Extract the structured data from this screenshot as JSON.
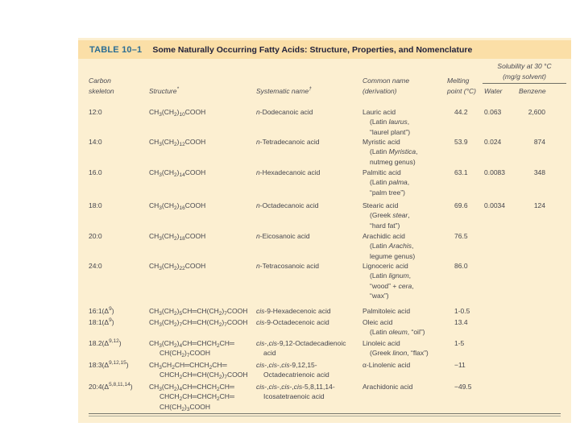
{
  "table": {
    "label": "TABLE 10–1",
    "title": "Some Naturally Occurring Fatty Acids: Structure, Properties, and Nomenclature",
    "colors": {
      "band_background": "#fbdfa7",
      "body_background": "#fcefd1",
      "label_blue": "#2d6e93",
      "text": "#45454d"
    },
    "headers": {
      "carbon_line1": "Carbon",
      "carbon_line2": "skeleton",
      "structure": "Structure^{*}",
      "systematic": "Systematic name^{†}",
      "common_line1": "Common name",
      "common_line2": "(derivation)",
      "melting_line1": "Melting",
      "melting_line2": "point (°C)",
      "solubility_line1": "Solubility at 30 °C",
      "solubility_line2": "(mg/g solvent)",
      "water": "Water",
      "benzene": "Benzene"
    },
    "rows": [
      {
        "skeleton": "12:0",
        "structure": [
          "CH_{3}(CH_{2})_{10}COOH"
        ],
        "systematic": [
          "*n*-Dodecanoic acid"
        ],
        "common": [
          "Lauric acid",
          "(Latin *laurus*,",
          "“laurel plant”)"
        ],
        "melting": "44.2",
        "water": "0.063",
        "benzene": "2,600"
      },
      {
        "skeleton": "14:0",
        "structure": [
          "CH_{3}(CH_{2})_{12}COOH"
        ],
        "systematic": [
          "*n*-Tetradecanoic acid"
        ],
        "common": [
          "Myristic acid",
          "(Latin *Myristica*,",
          "nutmeg genus)"
        ],
        "melting": "53.9",
        "water": "0.024",
        "benzene": "874"
      },
      {
        "skeleton": "16.0",
        "structure": [
          "CH_{3}(CH_{2})_{14}COOH"
        ],
        "systematic": [
          "*n*-Hexadecanoic acid"
        ],
        "common": [
          "Palmitic acid",
          "(Latin *palma*,",
          "“palm tree”)"
        ],
        "melting": "63.1",
        "water": "0.0083",
        "benzene": "348"
      },
      {
        "skeleton": "18:0",
        "structure": [
          "CH_{3}(CH_{2})_{16}COOH"
        ],
        "systematic": [
          "*n*-Octadecanoic acid"
        ],
        "common": [
          "Stearic acid",
          "(Greek *stear*,",
          "“hard fat”)"
        ],
        "melting": "69.6",
        "water": "0.0034",
        "benzene": "124"
      },
      {
        "skeleton": "20:0",
        "structure": [
          "CH_{3}(CH_{2})_{18}COOH"
        ],
        "systematic": [
          "*n*-Eicosanoic acid"
        ],
        "common": [
          "Arachidic acid",
          "(Latin *Arachis*,",
          "legume genus)"
        ],
        "melting": "76.5",
        "water": "",
        "benzene": ""
      },
      {
        "skeleton": "24:0",
        "structure": [
          "CH_{3}(CH_{2})_{22}COOH"
        ],
        "systematic": [
          "*n*-Tetracosanoic acid"
        ],
        "common": [
          "Lignoceric acid",
          "(Latin *lignum*,",
          "“wood” + *cera*,",
          "“wax”)"
        ],
        "melting": "86.0",
        "water": "",
        "benzene": ""
      },
      {
        "skeleton": "16:1(Δ^{9})",
        "structure": [
          "CH_{3}(CH_{2})_{5}CH═CH(CH_{2})_{7}COOH"
        ],
        "systematic": [
          "*cis*-9-Hexadecenoic acid"
        ],
        "common": [
          "Palmitoleic acid"
        ],
        "melting": "1-0.5",
        "water": "",
        "benzene": ""
      },
      {
        "skeleton": "18:1(Δ^{9})",
        "structure": [
          "CH_{3}(CH_{2})_{7}CH═CH(CH_{2})_{7}COOH"
        ],
        "systematic": [
          "*cis*-9-Octadecenoic acid"
        ],
        "common": [
          "Oleic acid",
          "(Latin *oleum*, “oil”)"
        ],
        "melting": "13.4",
        "water": "",
        "benzene": ""
      },
      {
        "skeleton": "18.2(Δ^{9,12})",
        "structure": [
          "CH_{3}(CH_{2})_{4}CH═CHCH_{2}CH═",
          "CH(CH_{2})_{7}COOH"
        ],
        "systematic": [
          "*cis*-,*cis*-9,12-Octadecadienoic",
          "acid"
        ],
        "common": [
          "Linoleic acid",
          "(Greek *linon*, “flax”)"
        ],
        "melting": "1-5",
        "water": "",
        "benzene": ""
      },
      {
        "skeleton": "18:3(Δ^{9,12,15})",
        "structure": [
          "CH_{3}CH_{2}CH═CHCH_{2}CH═",
          "CHCH_{2}CH═CH(CH_{2})_{7}COOH"
        ],
        "systematic": [
          "*cis*-,*cis*-,*cis*-9,12,15-",
          "Octadecatrienoic acid"
        ],
        "common": [
          "α-Linolenic acid"
        ],
        "melting": "−11",
        "water": "",
        "benzene": ""
      },
      {
        "skeleton": "20:4(Δ^{5,8,11,14})",
        "structure": [
          "CH_{3}(CH_{2})_{4}CH═CHCH_{2}CH═",
          "CHCH_{2}CH═CHCH_{2}CH═",
          "CH(CH_{2})_{3}COOH"
        ],
        "systematic": [
          "*cis*-,*cis*-,*cis*-,*cis*-5,8,11,14-",
          "Icosatetraenoic acid"
        ],
        "common": [
          "Arachidonic acid"
        ],
        "melting": "−49.5",
        "water": "",
        "benzene": ""
      }
    ]
  }
}
